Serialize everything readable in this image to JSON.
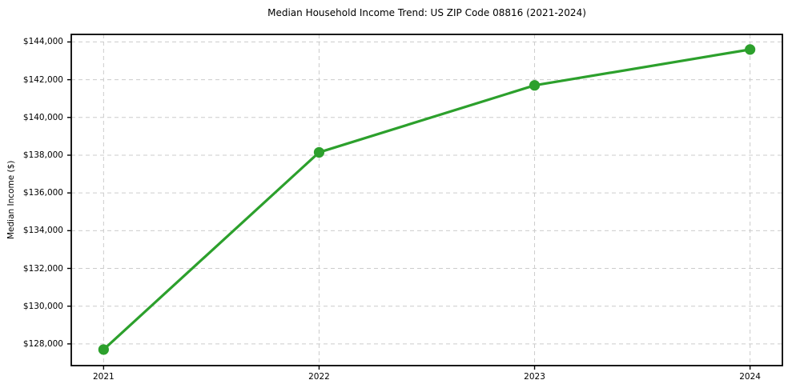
{
  "chart_data": {
    "type": "line",
    "title": "Median Household Income Trend: US ZIP Code 08816 (2021-2024)",
    "xlabel": "",
    "ylabel": "Median Income ($)",
    "series": [
      {
        "name": "Median household income",
        "x": [
          2021,
          2022,
          2023,
          2024
        ],
        "y": [
          127700,
          138150,
          141700,
          143600
        ]
      }
    ],
    "x": [
      2021,
      2022,
      2023,
      2024
    ],
    "y": [
      127700,
      138150,
      141700,
      143600
    ],
    "x_tick_labels": [
      "2021",
      "2022",
      "2023",
      "2024"
    ],
    "y_ticks": [
      128000,
      130000,
      132000,
      134000,
      136000,
      138000,
      140000,
      142000,
      144000
    ],
    "y_tick_labels": [
      "$128,000",
      "$130,000",
      "$132,000",
      "$134,000",
      "$136,000",
      "$138,000",
      "$140,000",
      "$142,000",
      "$144,000"
    ],
    "xlim": [
      2020.85,
      2024.15
    ],
    "ylim": [
      126850,
      144400
    ],
    "grid": true,
    "grid_style": "dashed",
    "legend": "none",
    "colors": {
      "line": "#2ca02c",
      "marker": "#2ca02c",
      "grid": "#cccccc",
      "spine": "#000000",
      "text": "#000000",
      "background": "#ffffff"
    },
    "line_width": 3.2,
    "marker_radius": 6.6
  }
}
